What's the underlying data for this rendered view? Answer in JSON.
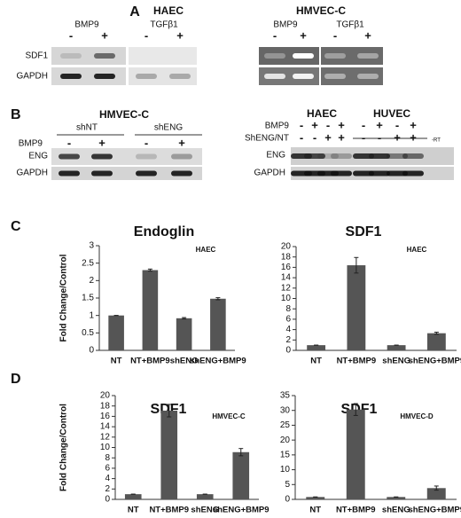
{
  "panel_a": {
    "letter": "A",
    "groups": [
      "HAEC",
      "HMVEC-C"
    ],
    "treatments": [
      "BMP9",
      "TGFβ1",
      "BMP9",
      "TGFβ1"
    ],
    "signs": [
      "-",
      "+",
      "-",
      "+",
      "-",
      "+",
      "-",
      "+"
    ],
    "rows": [
      "SDF1",
      "GAPDH"
    ]
  },
  "panel_b": {
    "letter": "B",
    "left": {
      "title": "HMVEC-C",
      "groups": [
        "shNT",
        "shENG"
      ],
      "treatment": "BMP9",
      "signs": [
        "-",
        "+",
        "-",
        "+"
      ],
      "rows": [
        "ENG",
        "GAPDH"
      ]
    },
    "right": {
      "groups": [
        "HAEC",
        "HUVEC"
      ],
      "treatments": [
        "BMP9",
        "ShENG/NT"
      ],
      "signs": [
        [
          "-",
          "+",
          "-",
          "+",
          "-",
          "+",
          "-",
          "+"
        ],
        [
          "-",
          "-",
          "+",
          "+",
          "-",
          "-",
          "+",
          "+"
        ]
      ],
      "control": "-RT",
      "rows": [
        "ENG",
        "GAPDH"
      ]
    }
  },
  "panels": {
    "c": "C",
    "d": "D"
  },
  "chart_data": [
    {
      "type": "bar",
      "title": "Endoglin",
      "subtitle": "HAEC",
      "ylabel": "Fold Change/Control",
      "categories": [
        "NT",
        "NT+BMP9",
        "shENG",
        "shENG+BMP9"
      ],
      "values": [
        1,
        2.3,
        0.92,
        1.48
      ],
      "errors": [
        0,
        0.03,
        0.02,
        0.03
      ],
      "color": "#555555",
      "ylim": [
        0,
        3
      ],
      "yticks": [
        0,
        0.5,
        1,
        1.5,
        2,
        2.5,
        3
      ]
    },
    {
      "type": "bar",
      "title": "SDF1",
      "subtitle": "HAEC",
      "categories": [
        "NT",
        "NT+BMP9",
        "shENG",
        "shENG+BMP9"
      ],
      "values": [
        1,
        16.4,
        1,
        3.3
      ],
      "errors": [
        0,
        1.5,
        0,
        0.2
      ],
      "color": "#555555",
      "ylim": [
        0,
        20
      ],
      "yticks": [
        0,
        2,
        4,
        6,
        8,
        10,
        12,
        14,
        16,
        18,
        20
      ]
    },
    {
      "type": "bar",
      "title": "SDF1",
      "subtitle": "HMVEC-C",
      "ylabel": "Fold Change/Control",
      "categories": [
        "NT",
        "NT+BMP9",
        "shENG",
        "shENG+BMP9"
      ],
      "values": [
        1,
        17.1,
        1,
        9.1
      ],
      "errors": [
        0,
        1.2,
        0,
        0.7
      ],
      "color": "#555555",
      "ylim": [
        0,
        20
      ],
      "yticks": [
        0,
        2,
        4,
        6,
        8,
        10,
        12,
        14,
        16,
        18,
        20
      ]
    },
    {
      "type": "bar",
      "title": "SDF1",
      "subtitle": "HMVEC-D",
      "categories": [
        "NT",
        "NT+BMP9",
        "shENG",
        "shENG+BMP9"
      ],
      "values": [
        0.8,
        30.3,
        0.8,
        3.8
      ],
      "errors": [
        0,
        2,
        0,
        0.7
      ],
      "color": "#555555",
      "ylim": [
        0,
        35
      ],
      "yticks": [
        0,
        5,
        10,
        15,
        20,
        25,
        30,
        35
      ]
    }
  ]
}
